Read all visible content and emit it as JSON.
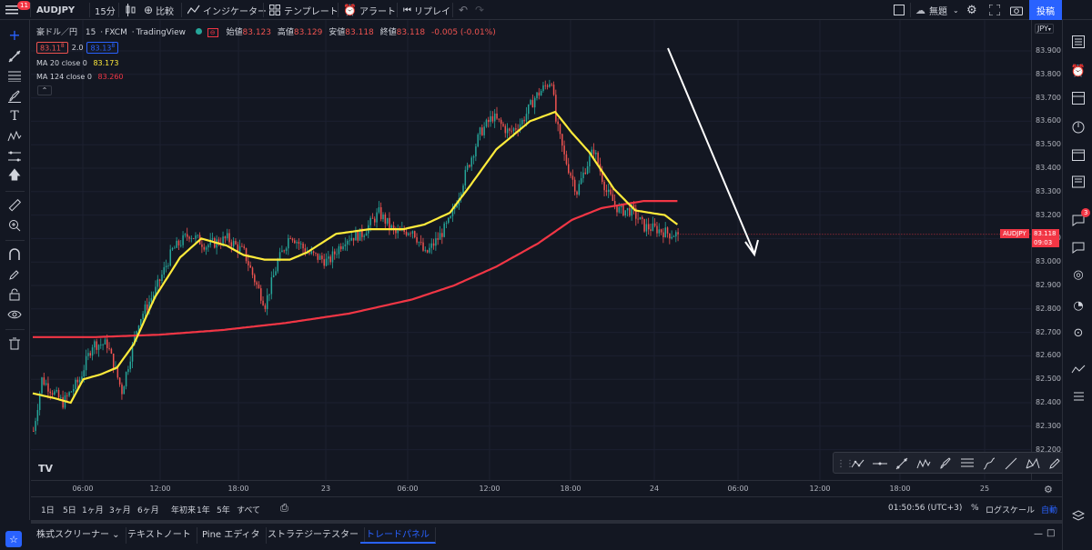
{
  "toolbar": {
    "notification_count": "11",
    "symbol": "AUDJPY",
    "interval": "15分",
    "compare": "比較",
    "indicators": "インジケーター",
    "templates": "テンプレート",
    "alert": "アラート",
    "replay": "リプレイ",
    "layout_name": "無題",
    "publish": "投稿"
  },
  "legend": {
    "title": "豪ドル／円",
    "interval": "15",
    "source": "FXCM",
    "brand": "TradingView",
    "open_label": "始値",
    "open": "83.123",
    "high_label": "高値",
    "high": "83.129",
    "low_label": "安値",
    "low": "83.118",
    "close_label": "終値",
    "close": "83.118",
    "change": "-0.005 (-0.01%)",
    "sell_price": "83.11",
    "sell_sup": "8",
    "spread": "2.0",
    "buy_price": "83.13",
    "buy_sup": "8",
    "ma20_label": "MA 20 close 0",
    "ma20_value": "83.173",
    "ma124_label": "MA 124 close 0",
    "ma124_value": "83.260"
  },
  "price_scale": {
    "currency": "JPY",
    "labels": [
      "83.900",
      "83.800",
      "83.700",
      "83.600",
      "83.500",
      "83.400",
      "83.300",
      "83.200",
      "83.100",
      "83.000",
      "82.900",
      "82.800",
      "82.700",
      "82.600",
      "82.500",
      "82.400",
      "82.300",
      "82.200"
    ],
    "symbol_tag": "AUDJPY",
    "last_price": "83.118",
    "countdown": "09:03"
  },
  "time_axis": {
    "labels": [
      "06:00",
      "12:00",
      "18:00",
      "23",
      "06:00",
      "12:00",
      "18:00",
      "24",
      "06:00",
      "12:00",
      "18:00",
      "25"
    ]
  },
  "bottom": {
    "ranges": [
      "1日",
      "5日",
      "1ヶ月",
      "3ヶ月",
      "6ヶ月",
      "年初来",
      "1年",
      "5年",
      "すべて"
    ],
    "clock": "01:50:56 (UTC+3)",
    "percent": "%",
    "log": "ログスケール",
    "auto": "自動"
  },
  "panel": {
    "tabs": [
      "株式スクリーナー",
      "テキストノート",
      "Pine エディタ",
      "ストラテジーテスター",
      "トレードパネル"
    ]
  },
  "right_sidebar": {
    "chat_badge": "3"
  },
  "colors": {
    "up": "#26a69a",
    "down": "#ef5350",
    "ma20": "#ffeb3b",
    "ma124": "#f23645",
    "accent": "#2962ff"
  },
  "chart_data": {
    "type": "candlestick",
    "symbol": "AUDJPY",
    "ylim": [
      82.2,
      83.9
    ],
    "anchors": [
      [
        0,
        82.28
      ],
      [
        4,
        82.5
      ],
      [
        14,
        82.4
      ],
      [
        22,
        82.5
      ],
      [
        28,
        82.65
      ],
      [
        35,
        82.65
      ],
      [
        42,
        82.45
      ],
      [
        50,
        82.75
      ],
      [
        58,
        82.88
      ],
      [
        66,
        83.05
      ],
      [
        74,
        83.12
      ],
      [
        82,
        83.07
      ],
      [
        92,
        83.1
      ],
      [
        100,
        83.04
      ],
      [
        106,
        82.9
      ],
      [
        110,
        82.82
      ],
      [
        116,
        83.0
      ],
      [
        122,
        83.12
      ],
      [
        130,
        83.04
      ],
      [
        140,
        83.0
      ],
      [
        148,
        83.1
      ],
      [
        156,
        83.12
      ],
      [
        164,
        83.21
      ],
      [
        172,
        83.12
      ],
      [
        180,
        83.14
      ],
      [
        186,
        83.03
      ],
      [
        192,
        83.1
      ],
      [
        198,
        83.18
      ],
      [
        206,
        83.4
      ],
      [
        212,
        83.55
      ],
      [
        218,
        83.62
      ],
      [
        226,
        83.55
      ],
      [
        232,
        83.6
      ],
      [
        238,
        83.7
      ],
      [
        246,
        83.78
      ],
      [
        248,
        83.6
      ],
      [
        252,
        83.45
      ],
      [
        258,
        83.3
      ],
      [
        262,
        83.4
      ],
      [
        266,
        83.48
      ],
      [
        272,
        83.3
      ],
      [
        278,
        83.22
      ],
      [
        284,
        83.22
      ],
      [
        290,
        83.15
      ],
      [
        296,
        83.14
      ],
      [
        302,
        83.12
      ],
      [
        306,
        83.118
      ]
    ],
    "ma20_anchors": [
      [
        0,
        82.44
      ],
      [
        10,
        82.42
      ],
      [
        18,
        82.4
      ],
      [
        24,
        82.5
      ],
      [
        32,
        82.52
      ],
      [
        40,
        82.55
      ],
      [
        48,
        82.65
      ],
      [
        58,
        82.85
      ],
      [
        70,
        83.02
      ],
      [
        80,
        83.1
      ],
      [
        92,
        83.07
      ],
      [
        100,
        83.03
      ],
      [
        110,
        83.01
      ],
      [
        122,
        83.01
      ],
      [
        130,
        83.04
      ],
      [
        144,
        83.12
      ],
      [
        160,
        83.14
      ],
      [
        176,
        83.14
      ],
      [
        186,
        83.16
      ],
      [
        198,
        83.21
      ],
      [
        208,
        83.33
      ],
      [
        220,
        83.48
      ],
      [
        236,
        83.6
      ],
      [
        248,
        83.64
      ],
      [
        256,
        83.55
      ],
      [
        264,
        83.47
      ],
      [
        276,
        83.31
      ],
      [
        286,
        83.22
      ],
      [
        300,
        83.2
      ],
      [
        306,
        83.16
      ]
    ],
    "ma124_anchors": [
      [
        0,
        82.68
      ],
      [
        30,
        82.68
      ],
      [
        60,
        82.69
      ],
      [
        90,
        82.71
      ],
      [
        120,
        82.74
      ],
      [
        150,
        82.78
      ],
      [
        180,
        82.84
      ],
      [
        200,
        82.9
      ],
      [
        220,
        82.98
      ],
      [
        240,
        83.08
      ],
      [
        256,
        83.18
      ],
      [
        270,
        83.23
      ],
      [
        290,
        83.26
      ],
      [
        306,
        83.26
      ]
    ],
    "bar_count": 307,
    "time_labels": [
      "06:00",
      "12:00",
      "18:00",
      "23",
      "06:00",
      "12:00",
      "18:00",
      "24",
      "06:00",
      "12:00",
      "18:00",
      "25"
    ]
  }
}
